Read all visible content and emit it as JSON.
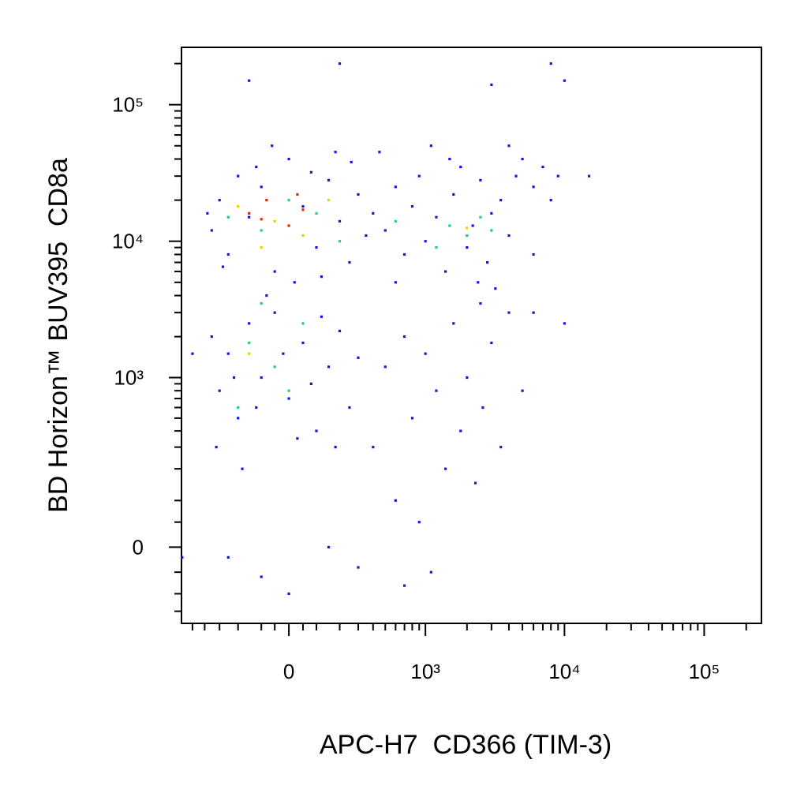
{
  "chart_data": {
    "type": "scatter",
    "xlabel": "APC-H7  CD366 (TIM-3)",
    "ylabel": "BD Horizon™ BUV395  CD8a",
    "xscale": "arcsinh",
    "xcofactor": 213,
    "yscale": "arcsinh",
    "ycofactor": 115,
    "xlim": [
      -607,
      257000
    ],
    "ylim": [
      -192,
      263000
    ],
    "xticks": [
      0,
      {
        "value": 1000,
        "label": "10³"
      },
      {
        "value": 10000,
        "label": "10⁴"
      },
      {
        "value": 100000,
        "label": "10⁵"
      }
    ],
    "yticks": [
      0,
      {
        "value": 1000,
        "label": "10³"
      },
      {
        "value": 10000,
        "label": "10⁴"
      },
      {
        "value": 100000,
        "label": "10⁵"
      }
    ],
    "xminorticks": [
      -500,
      -400,
      -300,
      -200,
      -100,
      -50,
      50,
      100,
      200,
      300,
      400,
      500,
      600,
      700,
      800,
      900,
      2000,
      3000,
      4000,
      5000,
      6000,
      7000,
      8000,
      9000,
      20000,
      30000,
      40000,
      50000,
      60000,
      70000,
      80000,
      90000,
      200000
    ],
    "yminorticks": [
      -150,
      -100,
      -50,
      50,
      100,
      200,
      300,
      400,
      500,
      600,
      700,
      800,
      900,
      2000,
      3000,
      4000,
      5000,
      6000,
      7000,
      8000,
      9000,
      20000,
      30000,
      40000,
      50000,
      60000,
      70000,
      80000,
      90000,
      200000
    ],
    "series": [
      {
        "color": "#1414e6",
        "x": [
          -350,
          -300,
          -250,
          -200,
          -150,
          -100,
          -50,
          0,
          50,
          100,
          150,
          200,
          250,
          300,
          350,
          -380,
          -120,
          80,
          180,
          -60,
          400,
          -280,
          20,
          120,
          260,
          500,
          600,
          700,
          800,
          900,
          1000,
          1200,
          1400,
          1600,
          1800,
          2000,
          2200,
          2500,
          2800,
          3000,
          3500,
          4000,
          4500,
          5000,
          6000,
          7000,
          8000,
          450,
          1100,
          2400,
          3200,
          600,
          1500,
          9000,
          4000,
          -300,
          -250,
          -200,
          -150,
          -100,
          -50,
          0,
          50,
          100,
          150,
          200,
          250,
          -320,
          -180,
          -80,
          30,
          120,
          -220,
          -20,
          80,
          300,
          -350,
          180,
          -120,
          400,
          500,
          600,
          700,
          800,
          900,
          1000,
          1200,
          1400,
          1600,
          1800,
          2000,
          2300,
          2600,
          3000,
          3500,
          4000,
          1100,
          700,
          300,
          -100,
          0,
          -250,
          150,
          2500,
          5000,
          6000,
          -500,
          -600,
          200,
          -150,
          8000,
          10000,
          3000,
          15000,
          10000,
          6000
        ],
        "y": [
          12000,
          20000,
          8000,
          30000,
          15000,
          25000,
          6000,
          40000,
          18000,
          9000,
          28000,
          14000,
          7000,
          22000,
          11000,
          16000,
          35000,
          32000,
          45000,
          50000,
          16000,
          6500,
          5000,
          5500,
          38000,
          12000,
          25000,
          8000,
          18000,
          30000,
          10000,
          15000,
          6000,
          22000,
          35000,
          9000,
          13000,
          28000,
          7000,
          16000,
          20000,
          11000,
          30000,
          40000,
          25000,
          35000,
          20000,
          45000,
          50000,
          5000,
          4500,
          5000,
          40000,
          30000,
          50000,
          800,
          1500,
          500,
          2500,
          1000,
          3000,
          700,
          1800,
          400,
          1200,
          2200,
          600,
          300,
          200,
          4000,
          350,
          2800,
          1000,
          1500,
          900,
          1400,
          2000,
          300,
          600,
          300,
          1200,
          100,
          2000,
          500,
          50,
          1500,
          800,
          200,
          2500,
          400,
          1000,
          150,
          600,
          1800,
          300,
          3000,
          -50,
          -80,
          -40,
          -60,
          -100,
          -20,
          0,
          3500,
          800,
          3000,
          1500,
          -20,
          200000,
          150000,
          200000,
          150000,
          140000,
          30000,
          2500,
          8000
        ]
      },
      {
        "color": "#22d26a",
        "x": [
          -250,
          -100,
          0,
          100,
          200,
          1500,
          2000,
          2500,
          3000,
          1200,
          -150,
          -50,
          0,
          -200,
          50,
          -100,
          600
        ],
        "y": [
          15000,
          12000,
          20000,
          16000,
          10000,
          13000,
          11000,
          15000,
          12000,
          9000,
          1800,
          1200,
          800,
          600,
          2500,
          3500,
          14000
        ]
      },
      {
        "color": "#e6d200",
        "x": [
          -200,
          -50,
          50,
          150,
          2000,
          -100,
          -150
        ],
        "y": [
          18000,
          14000,
          11000,
          20000,
          12500,
          9000,
          1500
        ]
      },
      {
        "color": "#e62a00",
        "x": [
          -150,
          -80,
          0,
          50,
          -100,
          30
        ],
        "y": [
          16000,
          20000,
          13000,
          17000,
          14500,
          22000
        ]
      }
    ]
  }
}
